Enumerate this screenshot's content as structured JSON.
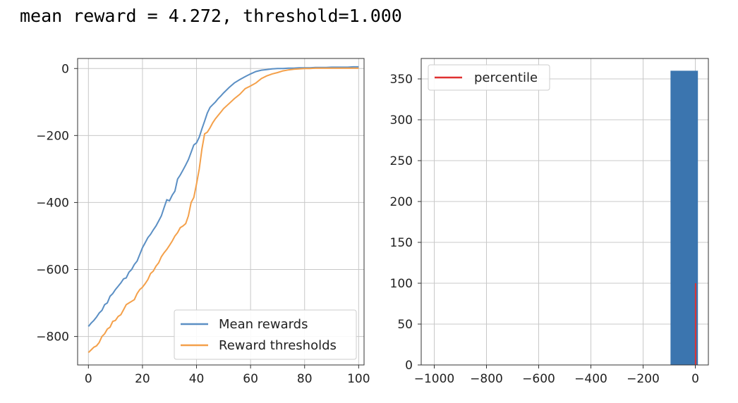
{
  "header": {
    "text": "mean reward = 4.272, threshold=1.000"
  },
  "chart_data": [
    {
      "type": "line",
      "title": "",
      "xlabel": "",
      "ylabel": "",
      "xlim": [
        -4,
        102
      ],
      "ylim": [
        -885,
        30
      ],
      "xticks": [
        0,
        20,
        40,
        60,
        80,
        100
      ],
      "yticks": [
        0,
        -200,
        -400,
        -600,
        -800
      ],
      "grid": true,
      "legend_position": "lower-right",
      "series": [
        {
          "name": "Mean rewards",
          "color": "#5b8fc4",
          "x": [
            0,
            1,
            2,
            3,
            4,
            5,
            6,
            7,
            8,
            9,
            10,
            11,
            12,
            13,
            14,
            15,
            16,
            17,
            18,
            19,
            20,
            21,
            22,
            23,
            24,
            25,
            26,
            27,
            28,
            29,
            30,
            31,
            32,
            33,
            34,
            35,
            36,
            37,
            38,
            39,
            40,
            41,
            42,
            43,
            44,
            45,
            46,
            47,
            48,
            49,
            50,
            52,
            54,
            56,
            58,
            60,
            62,
            64,
            66,
            68,
            70,
            72,
            74,
            76,
            78,
            80,
            82,
            84,
            86,
            88,
            90,
            92,
            94,
            96,
            98,
            100
          ],
          "y": [
            -770,
            -760,
            -752,
            -742,
            -730,
            -722,
            -705,
            -700,
            -680,
            -672,
            -660,
            -650,
            -640,
            -628,
            -625,
            -608,
            -600,
            -585,
            -575,
            -555,
            -535,
            -520,
            -505,
            -495,
            -482,
            -470,
            -455,
            -440,
            -415,
            -392,
            -395,
            -378,
            -366,
            -330,
            -318,
            -303,
            -288,
            -272,
            -250,
            -228,
            -222,
            -205,
            -180,
            -157,
            -133,
            -116,
            -108,
            -100,
            -90,
            -82,
            -73,
            -57,
            -43,
            -33,
            -24,
            -16,
            -9,
            -5,
            -3,
            -1,
            0,
            0,
            1,
            1,
            2,
            2,
            2,
            3,
            3,
            3,
            4,
            4,
            4,
            4,
            5,
            5
          ]
        },
        {
          "name": "Reward thresholds",
          "color": "#f4a04a",
          "x": [
            0,
            1,
            2,
            3,
            4,
            5,
            6,
            7,
            8,
            9,
            10,
            11,
            12,
            13,
            14,
            15,
            16,
            17,
            18,
            19,
            20,
            21,
            22,
            23,
            24,
            25,
            26,
            27,
            28,
            29,
            30,
            31,
            32,
            33,
            34,
            35,
            36,
            37,
            38,
            39,
            40,
            41,
            42,
            43,
            44,
            45,
            46,
            47,
            48,
            49,
            50,
            52,
            54,
            56,
            58,
            60,
            62,
            64,
            66,
            68,
            70,
            72,
            74,
            76,
            78,
            80,
            82,
            84,
            86,
            88,
            90,
            92,
            94,
            96,
            98,
            100
          ],
          "y": [
            -848,
            -840,
            -832,
            -828,
            -818,
            -800,
            -792,
            -778,
            -772,
            -755,
            -752,
            -740,
            -735,
            -720,
            -705,
            -700,
            -695,
            -690,
            -672,
            -660,
            -653,
            -642,
            -630,
            -612,
            -605,
            -590,
            -580,
            -562,
            -550,
            -540,
            -528,
            -515,
            -500,
            -490,
            -475,
            -470,
            -463,
            -440,
            -400,
            -385,
            -345,
            -300,
            -240,
            -195,
            -190,
            -177,
            -162,
            -150,
            -140,
            -130,
            -120,
            -105,
            -90,
            -77,
            -60,
            -52,
            -43,
            -30,
            -22,
            -16,
            -12,
            -7,
            -4,
            -2,
            -1,
            0,
            0,
            1,
            1,
            1,
            1,
            1,
            1,
            1,
            1,
            1
          ]
        }
      ]
    },
    {
      "type": "bar",
      "title": "",
      "xlabel": "",
      "ylabel": "",
      "xlim": [
        -1050,
        50
      ],
      "ylim": [
        0,
        375
      ],
      "xticks": [
        -1000,
        -800,
        -600,
        -400,
        -200,
        0
      ],
      "xtick_labels": [
        "−1000",
        "−800",
        "−600",
        "−400",
        "−200",
        "0"
      ],
      "yticks": [
        0,
        50,
        100,
        150,
        200,
        250,
        300,
        350
      ],
      "grid": true,
      "legend_position": "upper-left",
      "histogram": {
        "bin_start": -95,
        "bin_end": 10,
        "count": 360,
        "color": "#3b75af"
      },
      "percentile_line": {
        "name": "percentile",
        "x": 1,
        "y0": 0,
        "y1": 100,
        "color": "#e03131"
      }
    }
  ]
}
